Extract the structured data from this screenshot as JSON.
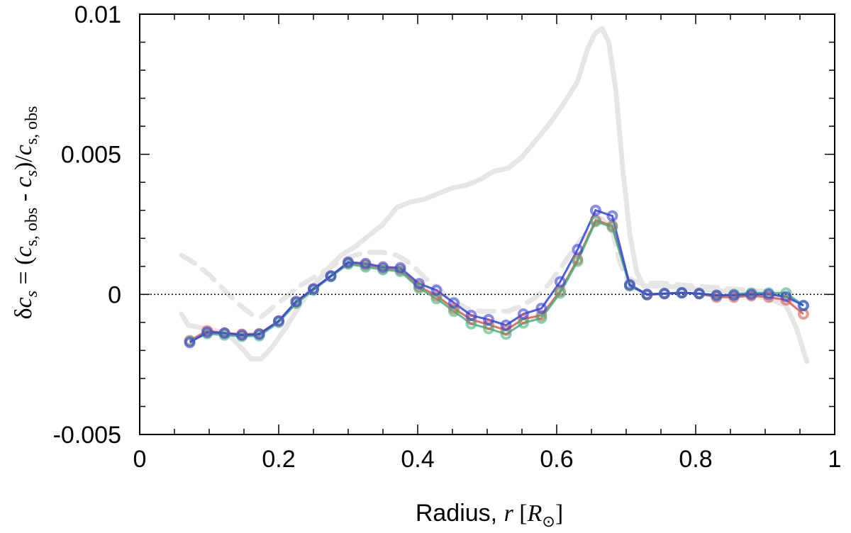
{
  "chart_data": {
    "type": "line",
    "xlabel": {
      "text": "Radius, ",
      "var": "r",
      "unit_open": " [",
      "unit_var": "R",
      "unit_sub": "⊙",
      "unit_close": "]"
    },
    "ylabel": {
      "delta": "δ",
      "c": "c",
      "s": "s",
      "eq": " = (",
      "sub_obs": "s, obs",
      "minus": " - ",
      "close": ")/",
      "tail_sub": "s, obs"
    },
    "xlim": [
      0,
      1
    ],
    "ylim": [
      -0.005,
      0.01
    ],
    "x_ticks": [
      {
        "value": 0,
        "label": "0"
      },
      {
        "value": 0.2,
        "label": "0.2"
      },
      {
        "value": 0.4,
        "label": "0.4"
      },
      {
        "value": 0.6,
        "label": "0.6"
      },
      {
        "value": 0.8,
        "label": "0.8"
      },
      {
        "value": 1,
        "label": "1"
      }
    ],
    "y_ticks": [
      {
        "value": -0.005,
        "label": "-0.005"
      },
      {
        "value": 0,
        "label": "0"
      },
      {
        "value": 0.005,
        "label": "0.005"
      },
      {
        "value": 0.01,
        "label": "0.01"
      }
    ],
    "x_minor_step": 0.05,
    "y_minor_step": 0.001,
    "reference_line": {
      "y": 0,
      "style": "dotted",
      "color": "#000000"
    },
    "grid": false,
    "legend": "none",
    "background_series": [
      {
        "style": "solid",
        "color": "#e6e6e6",
        "points": [
          [
            0.06,
            -0.0007
          ],
          [
            0.07,
            -0.0011
          ],
          [
            0.09,
            -0.0012
          ],
          [
            0.11,
            -0.0013
          ],
          [
            0.13,
            -0.0015
          ],
          [
            0.15,
            -0.002
          ],
          [
            0.16,
            -0.0023
          ],
          [
            0.175,
            -0.0023
          ],
          [
            0.19,
            -0.0019
          ],
          [
            0.21,
            -0.0012
          ],
          [
            0.23,
            -0.0004
          ],
          [
            0.25,
            0.0003
          ],
          [
            0.27,
            0.0009
          ],
          [
            0.29,
            0.0014
          ],
          [
            0.31,
            0.0017
          ],
          [
            0.33,
            0.0021
          ],
          [
            0.35,
            0.0025
          ],
          [
            0.37,
            0.0031
          ],
          [
            0.39,
            0.0033
          ],
          [
            0.41,
            0.0034
          ],
          [
            0.43,
            0.0036
          ],
          [
            0.45,
            0.0038
          ],
          [
            0.47,
            0.0039
          ],
          [
            0.49,
            0.0041
          ],
          [
            0.51,
            0.0044
          ],
          [
            0.53,
            0.0045
          ],
          [
            0.55,
            0.0049
          ],
          [
            0.57,
            0.0055
          ],
          [
            0.59,
            0.0061
          ],
          [
            0.61,
            0.0068
          ],
          [
            0.63,
            0.0076
          ],
          [
            0.645,
            0.0088
          ],
          [
            0.655,
            0.0093
          ],
          [
            0.665,
            0.0095
          ],
          [
            0.675,
            0.009
          ],
          [
            0.685,
            0.0073
          ],
          [
            0.695,
            0.0045
          ],
          [
            0.705,
            0.0022
          ],
          [
            0.715,
            0.0008
          ],
          [
            0.725,
            0.0003
          ],
          [
            0.75,
            0.0003
          ],
          [
            0.8,
            0.0002
          ],
          [
            0.85,
            0.0001
          ],
          [
            0.9,
            -0.0001
          ],
          [
            0.93,
            -0.0004
          ],
          [
            0.945,
            -0.0012
          ],
          [
            0.96,
            -0.0024
          ]
        ]
      },
      {
        "style": "dashed",
        "color": "#e6e6e6",
        "points": [
          [
            0.06,
            0.0014
          ],
          [
            0.08,
            0.0011
          ],
          [
            0.1,
            0.0007
          ],
          [
            0.12,
            0.0002
          ],
          [
            0.14,
            -0.0003
          ],
          [
            0.16,
            -0.0007
          ],
          [
            0.175,
            -0.0008
          ],
          [
            0.19,
            -0.0005
          ],
          [
            0.21,
            -0.0001
          ],
          [
            0.23,
            0.0003
          ],
          [
            0.25,
            0.0006
          ],
          [
            0.27,
            0.0009
          ],
          [
            0.29,
            0.0012
          ],
          [
            0.31,
            0.0014
          ],
          [
            0.33,
            0.0015
          ],
          [
            0.35,
            0.0015
          ],
          [
            0.37,
            0.0014
          ],
          [
            0.39,
            0.0011
          ],
          [
            0.41,
            0.0006
          ],
          [
            0.43,
            0.0002
          ],
          [
            0.45,
            -0.0002
          ],
          [
            0.47,
            -0.0005
          ],
          [
            0.49,
            -0.0006
          ],
          [
            0.51,
            -0.0006
          ],
          [
            0.53,
            -0.0006
          ],
          [
            0.55,
            -0.0004
          ],
          [
            0.57,
            -0.0001
          ],
          [
            0.59,
            0.0004
          ],
          [
            0.61,
            0.0011
          ],
          [
            0.63,
            0.0018
          ],
          [
            0.65,
            0.0024
          ],
          [
            0.665,
            0.0027
          ],
          [
            0.68,
            0.0023
          ],
          [
            0.69,
            0.0012
          ],
          [
            0.7,
            0.0006
          ],
          [
            0.72,
            0.0004
          ],
          [
            0.75,
            0.0004
          ],
          [
            0.8,
            0.0003
          ],
          [
            0.85,
            0.0002
          ],
          [
            0.9,
            0.0001
          ],
          [
            0.93,
            -0.0001
          ],
          [
            0.95,
            -0.0004
          ]
        ]
      }
    ],
    "series": [
      {
        "color": "#e0564b",
        "x": [
          0.072,
          0.097,
          0.122,
          0.147,
          0.172,
          0.2,
          0.225,
          0.25,
          0.275,
          0.3,
          0.325,
          0.35,
          0.375,
          0.402,
          0.427,
          0.452,
          0.477,
          0.502,
          0.527,
          0.552,
          0.578,
          0.605,
          0.63,
          0.656,
          0.68,
          0.705,
          0.73,
          0.755,
          0.78,
          0.805,
          0.83,
          0.855,
          0.88,
          0.905,
          0.93,
          0.955
        ],
        "y": [
          -0.00165,
          -0.0013,
          -0.00138,
          -0.00142,
          -0.0014,
          -0.00095,
          -0.00028,
          0.00018,
          0.00065,
          0.00112,
          0.00105,
          0.00093,
          0.00088,
          0.00028,
          -5e-05,
          -0.0005,
          -0.0009,
          -0.00108,
          -0.00128,
          -0.00088,
          -0.00075,
          0.00012,
          0.00125,
          0.00265,
          0.00245,
          0.00032,
          -2e-05,
          2e-05,
          5e-05,
          2e-05,
          -0.0001,
          -0.0001,
          -5e-05,
          -0.0001,
          -0.0002,
          -0.0007
        ]
      },
      {
        "color": "#3cb37c",
        "x": [
          0.072,
          0.097,
          0.122,
          0.147,
          0.172,
          0.2,
          0.225,
          0.25,
          0.275,
          0.3,
          0.325,
          0.35,
          0.375,
          0.402,
          0.427,
          0.452,
          0.477,
          0.502,
          0.527,
          0.552,
          0.578,
          0.605,
          0.63,
          0.656,
          0.68,
          0.705,
          0.73,
          0.755,
          0.78,
          0.805,
          0.83,
          0.855,
          0.88,
          0.905,
          0.93,
          0.955
        ],
        "y": [
          -0.00168,
          -0.0014,
          -0.00145,
          -0.0015,
          -0.00148,
          -0.001,
          -0.00032,
          0.00015,
          0.00063,
          0.00108,
          0.00098,
          0.00088,
          0.00082,
          0.00022,
          -0.00015,
          -0.0006,
          -0.00105,
          -0.00122,
          -0.00142,
          -0.00102,
          -0.00085,
          5e-05,
          0.00118,
          0.0026,
          0.0024,
          0.0003,
          0.0,
          3e-05,
          6e-05,
          3e-05,
          -5e-05,
          0.0,
          5e-05,
          5e-05,
          5e-05,
          -0.0004
        ]
      },
      {
        "color": "#3340e0",
        "x": [
          0.072,
          0.097,
          0.122,
          0.147,
          0.172,
          0.2,
          0.225,
          0.25,
          0.275,
          0.3,
          0.325,
          0.35,
          0.375,
          0.402,
          0.427,
          0.452,
          0.477,
          0.502,
          0.527,
          0.552,
          0.578,
          0.605,
          0.63,
          0.656,
          0.68,
          0.705,
          0.73,
          0.755,
          0.78,
          0.805,
          0.83,
          0.855,
          0.88,
          0.905,
          0.93,
          0.955
        ],
        "y": [
          -0.00172,
          -0.00135,
          -0.00138,
          -0.00145,
          -0.00142,
          -0.00095,
          -0.00025,
          0.0002,
          0.00066,
          0.00115,
          0.0011,
          0.00098,
          0.00095,
          0.00038,
          0.00015,
          -0.0003,
          -0.00075,
          -0.0009,
          -0.0011,
          -0.0007,
          -0.0005,
          0.00045,
          0.0016,
          0.003,
          0.0028,
          0.00035,
          0.0,
          3e-05,
          6e-05,
          3e-05,
          -3e-05,
          -3e-05,
          0.0,
          0.0,
          -8e-05,
          -0.0004
        ]
      }
    ]
  }
}
